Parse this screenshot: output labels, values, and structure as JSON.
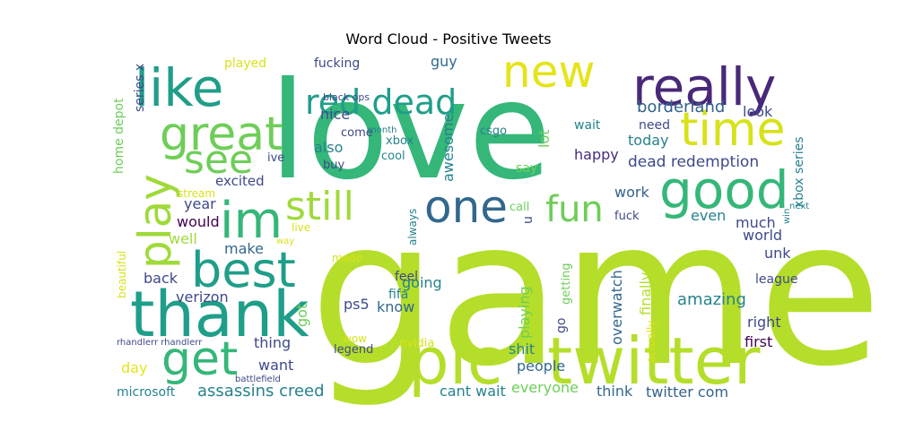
{
  "chart_data": {
    "type": "wordcloud",
    "title": "Word Cloud - Positive Tweets",
    "words": [
      {
        "text": "game",
        "color": "#b5de2b"
      },
      {
        "text": "love",
        "color": "#35b779"
      },
      {
        "text": "pic",
        "color": "#b5de2b"
      },
      {
        "text": "twitter",
        "color": "#b5de2b"
      },
      {
        "text": "thank",
        "color": "#1f9e89"
      },
      {
        "text": "really",
        "color": "#482878"
      },
      {
        "text": "new",
        "color": "#e5e419"
      },
      {
        "text": "good",
        "color": "#35b779"
      },
      {
        "text": "like",
        "color": "#1f9e89"
      },
      {
        "text": "time",
        "color": "#d8e219"
      },
      {
        "text": "one",
        "color": "#31688e"
      },
      {
        "text": "im",
        "color": "#35b779"
      },
      {
        "text": "best",
        "color": "#1f9e89"
      },
      {
        "text": "great",
        "color": "#6ece58"
      },
      {
        "text": "get",
        "color": "#35b779"
      },
      {
        "text": "play",
        "color": "#9fda3a"
      },
      {
        "text": "red dead",
        "color": "#1f9e89"
      },
      {
        "text": "see",
        "color": "#6ece58"
      },
      {
        "text": "still",
        "color": "#9fda3a"
      },
      {
        "text": "fun",
        "color": "#6ece58"
      },
      {
        "text": "assassins creed",
        "color": "#26828e"
      },
      {
        "text": "borderland",
        "color": "#33638d"
      },
      {
        "text": "amazing",
        "color": "#26828e"
      },
      {
        "text": "dead redemption",
        "color": "#3e4989"
      },
      {
        "text": "twitter com",
        "color": "#33638d"
      },
      {
        "text": "cant wait",
        "color": "#26828e"
      },
      {
        "text": "verizon",
        "color": "#3e4989"
      },
      {
        "text": "overwatch",
        "color": "#31688e"
      },
      {
        "text": "world",
        "color": "#3e4989"
      },
      {
        "text": "excited",
        "color": "#3e4989"
      },
      {
        "text": "happy",
        "color": "#472d7b"
      },
      {
        "text": "playing",
        "color": "#6ece58"
      },
      {
        "text": "today",
        "color": "#26828e"
      },
      {
        "text": "right",
        "color": "#3e4989"
      },
      {
        "text": "first",
        "color": "#440154"
      },
      {
        "text": "people",
        "color": "#31688e"
      },
      {
        "text": "everyone",
        "color": "#6ece58"
      },
      {
        "text": "think",
        "color": "#31688e"
      },
      {
        "text": "would",
        "color": "#440154"
      },
      {
        "text": "year",
        "color": "#3e4989"
      },
      {
        "text": "make",
        "color": "#31688e"
      },
      {
        "text": "back",
        "color": "#3e4989"
      },
      {
        "text": "going",
        "color": "#26828e"
      },
      {
        "text": "know",
        "color": "#31688e"
      },
      {
        "text": "ps5",
        "color": "#3e4989"
      },
      {
        "text": "thing",
        "color": "#3e4989"
      },
      {
        "text": "want",
        "color": "#3e4989"
      },
      {
        "text": "day",
        "color": "#e5e419"
      },
      {
        "text": "shit",
        "color": "#26828e"
      },
      {
        "text": "got",
        "color": "#6ece58"
      },
      {
        "text": "well",
        "color": "#9fda3a"
      },
      {
        "text": "guy",
        "color": "#31688e"
      },
      {
        "text": "nice",
        "color": "#3e4989"
      },
      {
        "text": "also",
        "color": "#26828e"
      },
      {
        "text": "work",
        "color": "#33638d"
      },
      {
        "text": "even",
        "color": "#26828e"
      },
      {
        "text": "much",
        "color": "#3e4989"
      },
      {
        "text": "unk",
        "color": "#3e4989"
      },
      {
        "text": "look",
        "color": "#3e4989"
      },
      {
        "text": "finally",
        "color": "#b5de2b"
      },
      {
        "text": "awesome",
        "color": "#26828e"
      },
      {
        "text": "lot",
        "color": "#6ece58"
      },
      {
        "text": "say",
        "color": "#6ece58"
      },
      {
        "text": "go",
        "color": "#3e4989"
      },
      {
        "text": "u",
        "color": "#3e4989"
      },
      {
        "text": "feel",
        "color": "#3e4989"
      },
      {
        "text": "fifa",
        "color": "#26828e"
      },
      {
        "text": "need",
        "color": "#3e4989"
      },
      {
        "text": "wait",
        "color": "#26828e"
      },
      {
        "text": "league",
        "color": "#3e4989"
      },
      {
        "text": "xbox series",
        "color": "#26828e"
      },
      {
        "text": "home depot",
        "color": "#6ece58"
      },
      {
        "text": "series x",
        "color": "#3e4989"
      },
      {
        "text": "played",
        "color": "#d8e219"
      },
      {
        "text": "fucking",
        "color": "#3e4989"
      },
      {
        "text": "black ops",
        "color": "#3e4989"
      },
      {
        "text": "csgo",
        "color": "#26828e"
      },
      {
        "text": "come",
        "color": "#3e4989"
      },
      {
        "text": "buy",
        "color": "#3e4989"
      },
      {
        "text": "xbox",
        "color": "#26828e"
      },
      {
        "text": "cool",
        "color": "#26828e"
      },
      {
        "text": "ive",
        "color": "#3e4989"
      },
      {
        "text": "month",
        "color": "#26828e"
      },
      {
        "text": "call",
        "color": "#6ece58"
      },
      {
        "text": "stream",
        "color": "#d8e219"
      },
      {
        "text": "always",
        "color": "#26828e"
      },
      {
        "text": "fuck",
        "color": "#3e4989"
      },
      {
        "text": "next",
        "color": "#26828e"
      },
      {
        "text": "win",
        "color": "#26828e"
      },
      {
        "text": "live",
        "color": "#d8e219"
      },
      {
        "text": "way",
        "color": "#d8e219"
      },
      {
        "text": "made",
        "color": "#d8e219"
      },
      {
        "text": "getting",
        "color": "#6ece58"
      },
      {
        "text": "actually",
        "color": "#d8e219"
      },
      {
        "text": "beautiful",
        "color": "#d8e219"
      },
      {
        "text": "wow",
        "color": "#d8e219"
      },
      {
        "text": "legend",
        "color": "#3e4989"
      },
      {
        "text": "nvidia",
        "color": "#d8e219"
      },
      {
        "text": "rhandlerr rhandlerr",
        "color": "#3e4989"
      },
      {
        "text": "battlefield",
        "color": "#3e4989"
      },
      {
        "text": "microsoft",
        "color": "#26828e"
      }
    ]
  }
}
